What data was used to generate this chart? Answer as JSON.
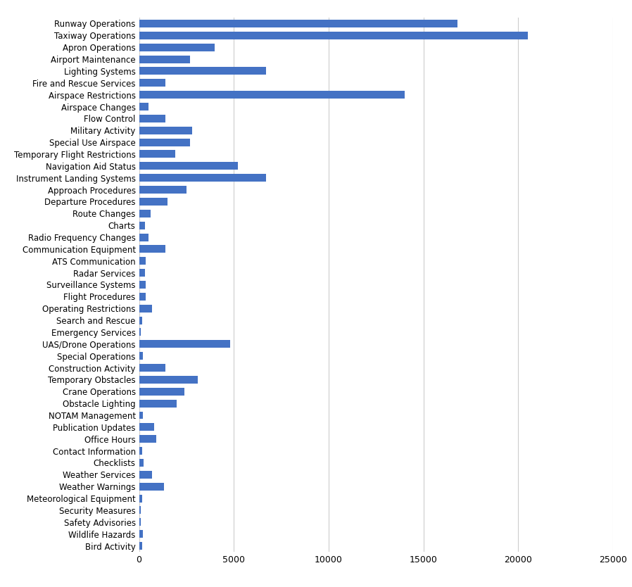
{
  "categories": [
    "Runway Operations",
    "Taxiway Operations",
    "Apron Operations",
    "Airport Maintenance",
    "Lighting Systems",
    "Fire and Rescue Services",
    "Airspace Restrictions",
    "Airspace Changes",
    "Flow Control",
    "Military Activity",
    "Special Use Airspace",
    "Temporary Flight Restrictions",
    "Navigation Aid Status",
    "Instrument Landing Systems",
    "Approach Procedures",
    "Departure Procedures",
    "Route Changes",
    "Charts",
    "Radio Frequency Changes",
    "Communication Equipment",
    "ATS Communication",
    "Radar Services",
    "Surveillance Systems",
    "Flight Procedures",
    "Operating Restrictions",
    "Search and Rescue",
    "Emergency Services",
    "UAS/Drone Operations",
    "Special Operations",
    "Construction Activity",
    "Temporary Obstacles",
    "Crane Operations",
    "Obstacle Lighting",
    "NOTAM Management",
    "Publication Updates",
    "Office Hours",
    "Contact Information",
    "Checklists",
    "Weather Services",
    "Weather Warnings",
    "Meteorological Equipment",
    "Security Measures",
    "Safety Advisories",
    "Wildlife Hazards",
    "Bird Activity"
  ],
  "values": [
    16800,
    20500,
    4000,
    2700,
    6700,
    1400,
    14000,
    500,
    1400,
    2800,
    2700,
    1900,
    5200,
    6700,
    2500,
    1500,
    600,
    300,
    500,
    1400,
    350,
    300,
    350,
    350,
    700,
    150,
    100,
    4800,
    200,
    1400,
    3100,
    2400,
    2000,
    200,
    800,
    900,
    150,
    250,
    700,
    1300,
    150,
    100,
    100,
    200,
    150
  ],
  "bar_color": "#4472C4",
  "background_color": "#ffffff",
  "grid_color": "#cccccc",
  "xlim": [
    0,
    25000
  ],
  "xticks": [
    0,
    5000,
    10000,
    15000,
    20000,
    25000
  ],
  "label_fontsize": 8.5,
  "tick_fontsize": 9,
  "bar_height": 0.65
}
